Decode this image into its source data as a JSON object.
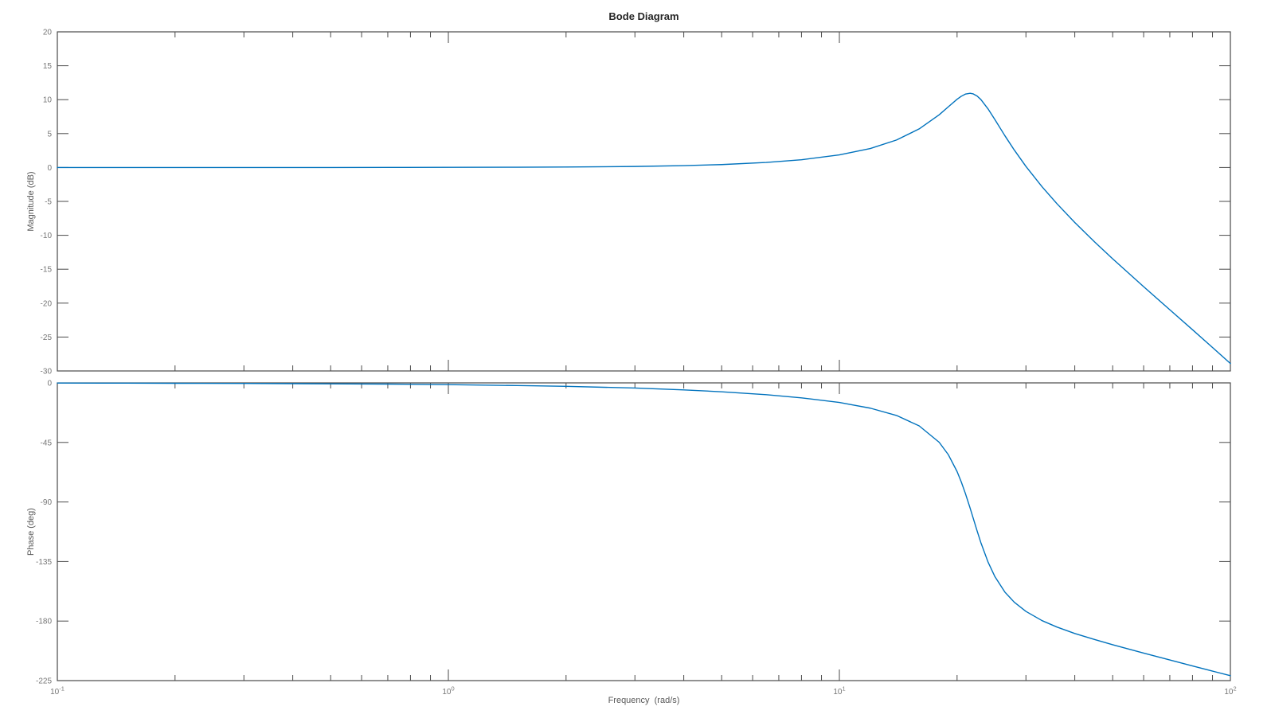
{
  "chart_data": {
    "type": "line",
    "title": "Bode Diagram",
    "xlabel": "Frequency  (rad/s)",
    "x_scale": "log",
    "x_range": [
      0.1,
      100
    ],
    "x_log_range": [
      -1,
      2
    ],
    "x_tick_base": "10",
    "x_tick_exponents": [
      "-1",
      "0",
      "1",
      "2"
    ],
    "x_minor_ticks_per_decade": [
      2,
      3,
      4,
      5,
      6,
      7,
      8,
      9
    ],
    "grid": false,
    "legend": "none",
    "line_color": "#0072BD",
    "axis_color": "#4a4a4a",
    "tick_label_color": "#757575",
    "x": [
      0.1,
      0.15,
      0.2,
      0.3,
      0.5,
      0.7,
      1,
      1.5,
      2,
      3,
      4,
      5,
      6.5,
      8,
      10,
      12,
      14,
      16,
      18,
      19,
      20,
      20.5,
      21,
      21.6,
      22,
      22.5,
      23,
      24,
      25,
      26.5,
      28,
      30,
      33,
      36,
      40,
      45,
      50,
      60,
      70,
      80,
      90,
      100
    ],
    "subplots": [
      {
        "name": "magnitude",
        "ylabel": "Magnitude (dB)",
        "ylim": [
          -30,
          20
        ],
        "yticks": [
          20,
          15,
          10,
          5,
          0,
          -5,
          -10,
          -15,
          -20,
          -25,
          -30
        ],
        "values": [
          0.0,
          0.0,
          0.0,
          0.0,
          0.0,
          0.01,
          0.02,
          0.04,
          0.07,
          0.15,
          0.27,
          0.43,
          0.74,
          1.14,
          1.86,
          2.8,
          4.05,
          5.69,
          7.77,
          8.95,
          10.06,
          10.5,
          10.82,
          10.94,
          10.85,
          10.54,
          10.03,
          8.64,
          7.04,
          4.69,
          2.59,
          0.16,
          -2.85,
          -5.33,
          -8.11,
          -11.0,
          -13.46,
          -17.57,
          -20.98,
          -23.92,
          -26.54,
          -28.9
        ]
      },
      {
        "name": "phase",
        "ylabel": "Phase (deg)",
        "ylim": [
          -225,
          0
        ],
        "yticks": [
          0,
          -45,
          -90,
          -135,
          -180,
          -225
        ],
        "values": [
          -0.1,
          -0.2,
          -0.3,
          -0.4,
          -0.7,
          -0.9,
          -1.3,
          -2.0,
          -2.6,
          -3.9,
          -5.3,
          -6.7,
          -8.9,
          -11.3,
          -14.8,
          -19.1,
          -24.6,
          -32.5,
          -44.9,
          -54.3,
          -67.0,
          -74.8,
          -83.5,
          -94.7,
          -102.4,
          -111.8,
          -120.6,
          -135.4,
          -146.5,
          -158.1,
          -165.7,
          -172.7,
          -179.7,
          -184.5,
          -189.4,
          -194.0,
          -197.9,
          -204.2,
          -209.4,
          -213.9,
          -217.8,
          -221.3
        ]
      }
    ]
  }
}
